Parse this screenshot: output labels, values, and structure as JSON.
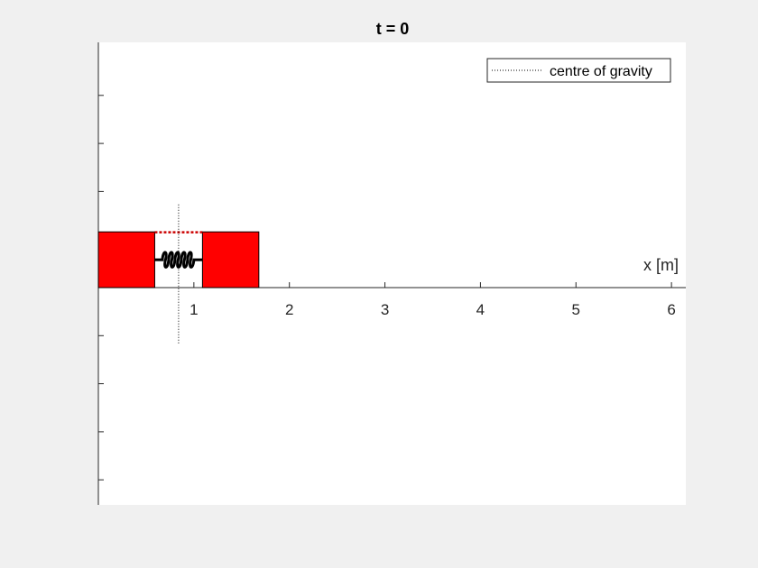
{
  "chart_data": {
    "type": "line",
    "title": "t = 0",
    "xlabel": "x [m]",
    "ylabel": "",
    "xlim": [
      0,
      6.15
    ],
    "x_ticks": [
      1,
      2,
      3,
      4,
      5,
      6
    ],
    "grid": false,
    "legend": {
      "placement": "top-right",
      "entries": [
        {
          "label": "centre of gravity",
          "style": "dotted",
          "color": "#000000"
        }
      ]
    },
    "objects": [
      {
        "name": "left mass",
        "x_start": 0,
        "x_end": 0.59,
        "color": "#ff0000"
      },
      {
        "name": "right mass",
        "x_start": 1.09,
        "x_end": 1.68,
        "color": "#ff0000"
      },
      {
        "name": "spring",
        "x_start": 0.59,
        "x_end": 1.09,
        "color": "#000000"
      }
    ],
    "series": [
      {
        "name": "centre of gravity",
        "x": [
          0.84,
          0.84
        ]
      }
    ],
    "colors": {
      "mass": "#ff0000",
      "spring": "#000000",
      "connector": "#cc0000",
      "axes_background": "#ffffff",
      "figure_background": "#f0f0f0"
    }
  }
}
